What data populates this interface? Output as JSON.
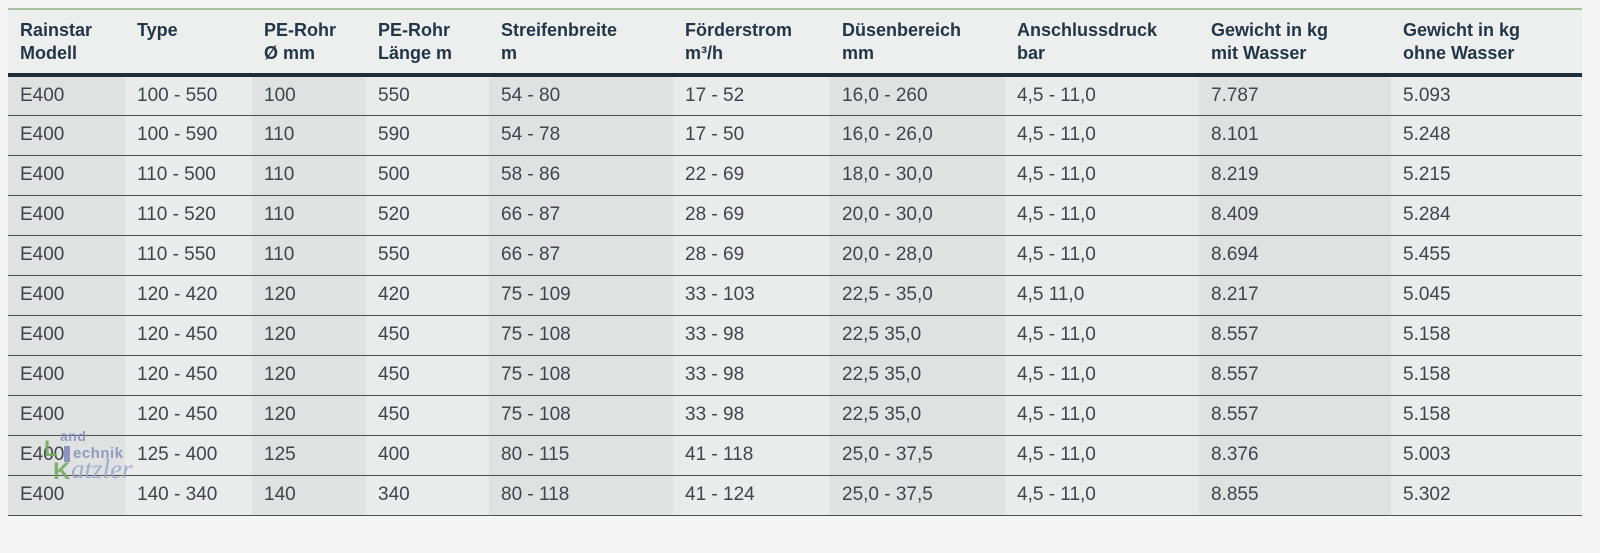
{
  "page": {
    "background": "#f4f5f4",
    "accent_green_line": "#a8c3a0",
    "header_rule_color": "#1e2d3c",
    "row_rule_color": "#4c4f55",
    "header_bg": "#edefee",
    "col_stripe_dark": "#e0e2e1",
    "col_stripe_light": "#eaeceb",
    "header_text_color": "#233648",
    "cell_text_color": "#3e454c"
  },
  "table": {
    "columns": [
      {
        "line1": "Rainstar",
        "line2": "Modell"
      },
      {
        "line1": "Type",
        "line2": ""
      },
      {
        "line1": "PE-Rohr",
        "line2": "Ø mm"
      },
      {
        "line1": "PE-Rohr",
        "line2": "Länge m"
      },
      {
        "line1": "Streifenbreite",
        "line2": "m"
      },
      {
        "line1": "Förderstrom",
        "line2": "m³/h"
      },
      {
        "line1": "Düsenbereich",
        "line2": "mm"
      },
      {
        "line1": "Anschlussdruck",
        "line2": "bar"
      },
      {
        "line1": "Gewicht in kg",
        "line2": "mit Wasser"
      },
      {
        "line1": "Gewicht in kg",
        "line2": "ohne Wasser"
      }
    ],
    "rows": [
      [
        "E400",
        "100 - 550",
        "100",
        "550",
        "54 - 80",
        "17 - 52",
        "16,0 - 260",
        "4,5 - 11,0",
        "7.787",
        "5.093"
      ],
      [
        "E400",
        "100 - 590",
        "110",
        "590",
        "54 - 78",
        "17 - 50",
        "16,0 - 26,0",
        "4,5 - 11,0",
        "8.101",
        "5.248"
      ],
      [
        "E400",
        "110 - 500",
        "110",
        "500",
        "58 - 86",
        "22 - 69",
        "18,0 - 30,0",
        "4,5 - 11,0",
        "8.219",
        "5.215"
      ],
      [
        "E400",
        "110 - 520",
        "110",
        "520",
        "66 - 87",
        "28 - 69",
        "20,0 - 30,0",
        "4,5 - 11,0",
        "8.409",
        "5.284"
      ],
      [
        "E400",
        "110 - 550",
        "110",
        "550",
        "66 - 87",
        "28 - 69",
        "20,0 - 28,0",
        "4,5 - 11,0",
        "8.694",
        "5.455"
      ],
      [
        "E400",
        "120 - 420",
        "120",
        "420",
        "75 - 109",
        "33 - 103",
        "22,5 - 35,0",
        "4,5 11,0",
        "8.217",
        "5.045"
      ],
      [
        "E400",
        "120 - 450",
        "120",
        "450",
        "75 - 108",
        "33 - 98",
        "22,5 35,0",
        "4,5 - 11,0",
        "8.557",
        "5.158"
      ],
      [
        "E400",
        "120 - 450",
        "120",
        "450",
        "75 - 108",
        "33 - 98",
        "22,5 35,0",
        "4,5 - 11,0",
        "8.557",
        "5.158"
      ],
      [
        "E400",
        "120 - 450",
        "120",
        "450",
        "75 - 108",
        "33 - 98",
        "22,5 35,0",
        "4,5 - 11,0",
        "8.557",
        "5.158"
      ],
      [
        "E400",
        "125 - 400",
        "125",
        "400",
        "80 - 115",
        "41 - 118",
        "25,0 - 37,5",
        "4,5 - 11,0",
        "8.376",
        "5.003"
      ],
      [
        "E400",
        "140 - 340",
        "140",
        "340",
        "80 - 118",
        "41 - 124",
        "25,0 - 37,5",
        "4,5 - 11,0",
        "8.855",
        "5.302"
      ]
    ]
  },
  "watermark": {
    "letter_l": "L",
    "word_top": "and",
    "word_mid": "echnik",
    "letter_k": "K",
    "word_bottom": "atzler",
    "green": "#74a85e",
    "blue": "#8691bd"
  }
}
